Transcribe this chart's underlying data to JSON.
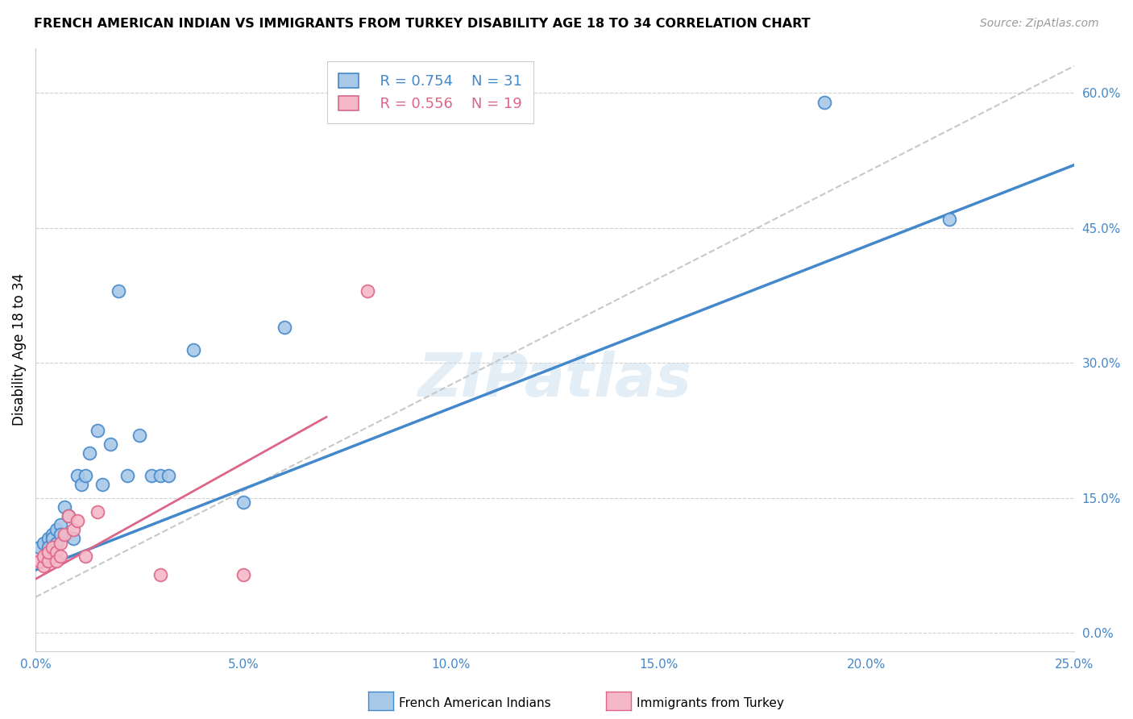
{
  "title": "FRENCH AMERICAN INDIAN VS IMMIGRANTS FROM TURKEY DISABILITY AGE 18 TO 34 CORRELATION CHART",
  "source": "Source: ZipAtlas.com",
  "ylabel": "Disability Age 18 to 34",
  "xlim": [
    0.0,
    0.25
  ],
  "ylim": [
    -0.02,
    0.65
  ],
  "blue_R": 0.754,
  "blue_N": 31,
  "pink_R": 0.556,
  "pink_N": 19,
  "legend1": "French American Indians",
  "legend2": "Immigrants from Turkey",
  "blue_color": "#a8c8e8",
  "pink_color": "#f5b8c8",
  "blue_line_color": "#4488cc",
  "pink_line_color": "#dd6688",
  "gray_dash_color": "#c8c8c8",
  "watermark": "ZIPatlas",
  "blue_scatter_x": [
    0.001,
    0.002,
    0.003,
    0.003,
    0.004,
    0.004,
    0.005,
    0.005,
    0.006,
    0.006,
    0.007,
    0.008,
    0.009,
    0.01,
    0.011,
    0.012,
    0.013,
    0.015,
    0.016,
    0.018,
    0.02,
    0.022,
    0.025,
    0.028,
    0.03,
    0.032,
    0.038,
    0.05,
    0.06,
    0.19,
    0.22
  ],
  "blue_scatter_y": [
    0.095,
    0.1,
    0.105,
    0.095,
    0.11,
    0.105,
    0.115,
    0.1,
    0.12,
    0.11,
    0.14,
    0.13,
    0.105,
    0.175,
    0.165,
    0.175,
    0.2,
    0.225,
    0.165,
    0.21,
    0.38,
    0.175,
    0.22,
    0.175,
    0.175,
    0.175,
    0.315,
    0.145,
    0.34,
    0.59,
    0.46
  ],
  "pink_scatter_x": [
    0.001,
    0.002,
    0.002,
    0.003,
    0.003,
    0.004,
    0.005,
    0.005,
    0.006,
    0.006,
    0.007,
    0.008,
    0.009,
    0.01,
    0.012,
    0.015,
    0.03,
    0.05,
    0.08
  ],
  "pink_scatter_y": [
    0.08,
    0.075,
    0.085,
    0.08,
    0.09,
    0.095,
    0.09,
    0.08,
    0.1,
    0.085,
    0.11,
    0.13,
    0.115,
    0.125,
    0.085,
    0.135,
    0.065,
    0.065,
    0.38
  ],
  "blue_line_x0": 0.0,
  "blue_line_y0": 0.07,
  "blue_line_x1": 0.25,
  "blue_line_y1": 0.52,
  "pink_line_x0": 0.0,
  "pink_line_y0": 0.06,
  "pink_line_x1": 0.07,
  "pink_line_y1": 0.24,
  "gray_line_x0": 0.0,
  "gray_line_y0": 0.04,
  "gray_line_x1": 0.25,
  "gray_line_y1": 0.63,
  "yticks": [
    0.0,
    0.15,
    0.3,
    0.45,
    0.6
  ],
  "ytick_labels_right": [
    "0.0%",
    "15.0%",
    "30.0%",
    "45.0%",
    "60.0%"
  ],
  "xticks": [
    0.0,
    0.05,
    0.1,
    0.15,
    0.2,
    0.25
  ],
  "xtick_labels": [
    "0.0%",
    "5.0%",
    "10.0%",
    "15.0%",
    "20.0%",
    "25.0%"
  ]
}
